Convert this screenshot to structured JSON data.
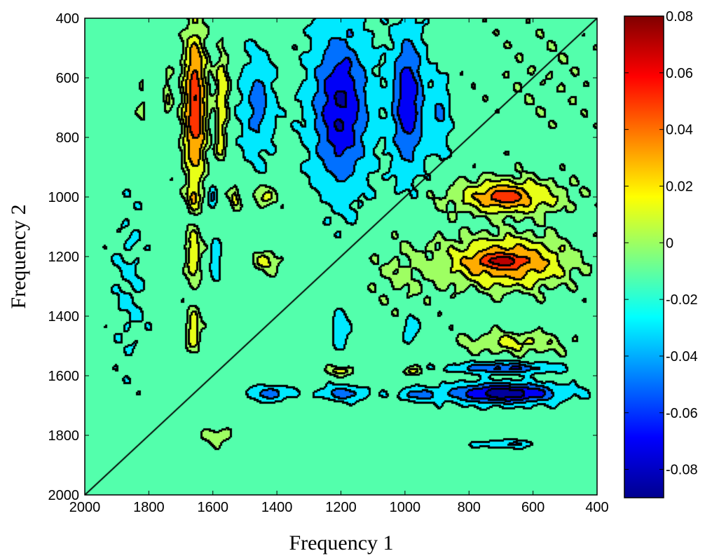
{
  "chart_data": {
    "type": "heatmap",
    "subtype": "filled-contour",
    "title": "",
    "xlabel": "Frequency 1",
    "ylabel": "Frequency 2",
    "xlim": [
      2000,
      400
    ],
    "ylim": [
      400,
      2000
    ],
    "x_reversed": true,
    "y_reversed": true,
    "xticks": [
      2000,
      1800,
      1600,
      1400,
      1200,
      1000,
      800,
      600,
      400
    ],
    "yticks": [
      400,
      600,
      800,
      1000,
      1200,
      1400,
      1600,
      1800,
      2000
    ],
    "colorbar": {
      "colormap": "jet",
      "range": [
        -0.09,
        0.08
      ],
      "ticks": [
        0.08,
        0.06,
        0.04,
        0.02,
        0,
        -0.02,
        -0.04,
        -0.06,
        -0.08
      ],
      "tick_labels": [
        "0.08",
        "0.06",
        "0.04",
        "0.02",
        "0",
        "-0.02",
        "-0.04",
        "-0.06",
        "-0.08"
      ]
    },
    "contour_levels": [
      -0.08,
      -0.06,
      -0.04,
      -0.02,
      -0.005,
      0.005,
      0.02,
      0.04,
      0.06
    ],
    "background_level": -0.012,
    "features": [
      {
        "x": 1655,
        "y": 700,
        "sx": 22,
        "sy": 160,
        "value": 0.07
      },
      {
        "x": 1570,
        "y": 650,
        "sx": 14,
        "sy": 90,
        "value": 0.03
      },
      {
        "x": 1575,
        "y": 820,
        "sx": 10,
        "sy": 40,
        "value": 0.02
      },
      {
        "x": 1820,
        "y": 680,
        "sx": 10,
        "sy": 50,
        "value": 0.01
      },
      {
        "x": 1740,
        "y": 660,
        "sx": 8,
        "sy": 60,
        "value": 0.015
      },
      {
        "x": 1460,
        "y": 690,
        "sx": 35,
        "sy": 120,
        "value": -0.035
      },
      {
        "x": 1200,
        "y": 700,
        "sx": 60,
        "sy": 180,
        "value": -0.07
      },
      {
        "x": 990,
        "y": 680,
        "sx": 35,
        "sy": 150,
        "value": -0.065
      },
      {
        "x": 890,
        "y": 730,
        "sx": 20,
        "sy": 90,
        "value": -0.03
      },
      {
        "x": 1660,
        "y": 1000,
        "sx": 12,
        "sy": 28,
        "value": 0.025
      },
      {
        "x": 1600,
        "y": 1000,
        "sx": 8,
        "sy": 25,
        "value": -0.03
      },
      {
        "x": 1530,
        "y": 1000,
        "sx": 10,
        "sy": 30,
        "value": 0.02
      },
      {
        "x": 1440,
        "y": 1000,
        "sx": 25,
        "sy": 25,
        "value": 0.02
      },
      {
        "x": 680,
        "y": 1000,
        "sx": 110,
        "sy": 40,
        "value": 0.04
      },
      {
        "x": 690,
        "y": 1000,
        "sx": 40,
        "sy": 18,
        "value": 0.03
      },
      {
        "x": 1660,
        "y": 1200,
        "sx": 15,
        "sy": 60,
        "value": 0.03
      },
      {
        "x": 1590,
        "y": 1210,
        "sx": 10,
        "sy": 40,
        "value": -0.03
      },
      {
        "x": 1430,
        "y": 1215,
        "sx": 30,
        "sy": 25,
        "value": 0.02
      },
      {
        "x": 680,
        "y": 1220,
        "sx": 120,
        "sy": 55,
        "value": 0.05
      },
      {
        "x": 700,
        "y": 1215,
        "sx": 50,
        "sy": 15,
        "value": 0.035
      },
      {
        "x": 1660,
        "y": 1450,
        "sx": 14,
        "sy": 45,
        "value": 0.03
      },
      {
        "x": 1200,
        "y": 1450,
        "sx": 15,
        "sy": 40,
        "value": -0.03
      },
      {
        "x": 980,
        "y": 1440,
        "sx": 15,
        "sy": 25,
        "value": -0.03
      },
      {
        "x": 660,
        "y": 1490,
        "sx": 110,
        "sy": 25,
        "value": 0.02
      },
      {
        "x": 690,
        "y": 1575,
        "sx": 100,
        "sy": 12,
        "value": -0.05
      },
      {
        "x": 690,
        "y": 1660,
        "sx": 110,
        "sy": 22,
        "value": -0.085
      },
      {
        "x": 1420,
        "y": 1660,
        "sx": 40,
        "sy": 16,
        "value": -0.04
      },
      {
        "x": 1190,
        "y": 1660,
        "sx": 50,
        "sy": 16,
        "value": -0.04
      },
      {
        "x": 960,
        "y": 1665,
        "sx": 40,
        "sy": 14,
        "value": -0.035
      },
      {
        "x": 1200,
        "y": 1585,
        "sx": 30,
        "sy": 10,
        "value": 0.02
      },
      {
        "x": 980,
        "y": 1585,
        "sx": 20,
        "sy": 10,
        "value": 0.02
      },
      {
        "x": 680,
        "y": 1830,
        "sx": 60,
        "sy": 8,
        "value": -0.03
      },
      {
        "x": 1580,
        "y": 1800,
        "sx": 30,
        "sy": 20,
        "value": 0.015
      },
      {
        "x": 1860,
        "y": 1300,
        "sx": 40,
        "sy": 200,
        "value": -0.01
      },
      {
        "x": 1000,
        "y": 1250,
        "sx": 80,
        "sy": 80,
        "value": 0.008
      },
      {
        "x": 560,
        "y": 600,
        "sx": 120,
        "sy": 150,
        "value": 0.004
      }
    ]
  }
}
